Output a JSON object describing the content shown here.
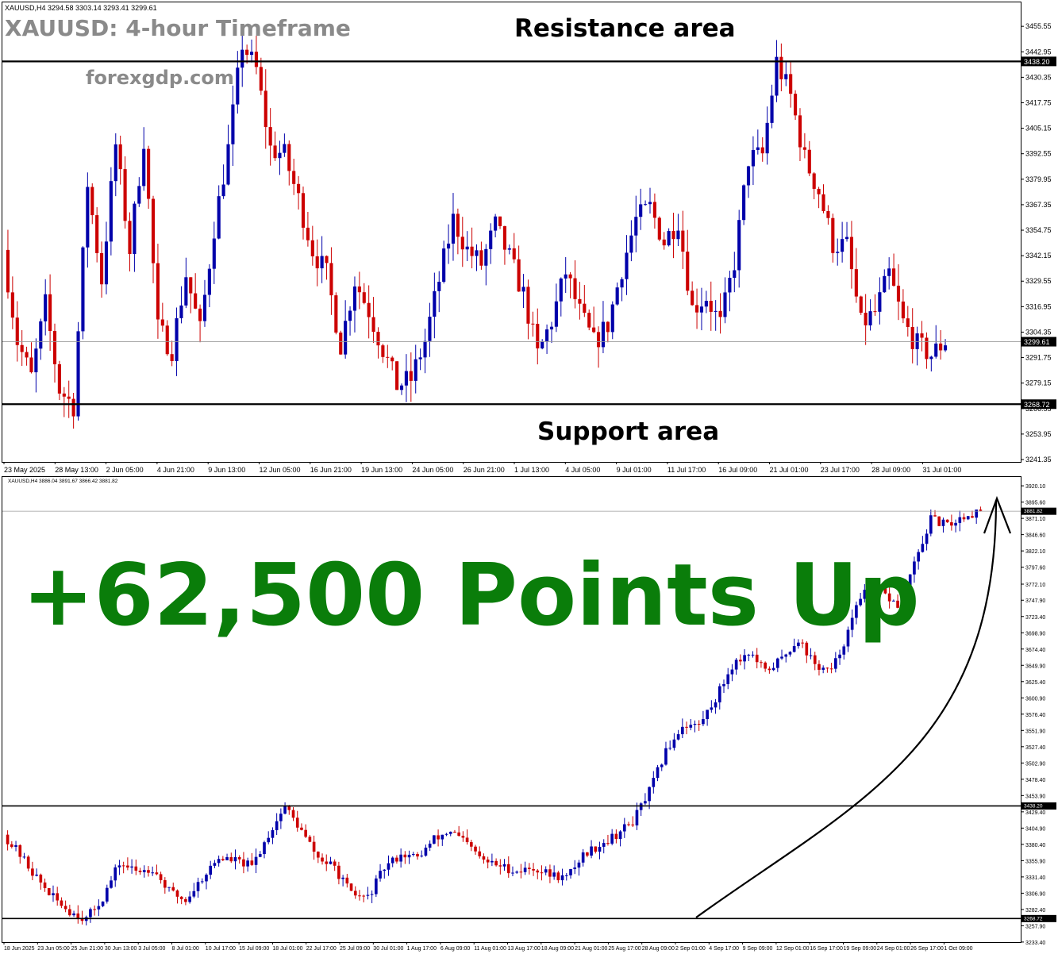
{
  "top_panel": {
    "header": "XAUUSD,H4  3294.58 3303.14 3293.41 3299.61",
    "title": "XAUUSD: 4-hour Timeframe",
    "brand": "forexgdp.com",
    "resistance_label": "Resistance area",
    "support_label": "Support area",
    "resistance_tag": "3438.20",
    "support_tag": "3268.72",
    "price_tag": "3299.61"
  },
  "bottom_panel": {
    "header": "XAUUSD,H4  3886.04 3891.67 3866.42 3881.82",
    "headline": "+62,500 Points Up",
    "resistance_tag": "3438.20",
    "support_tag": "3268.72",
    "price_tag": "3881.82"
  },
  "colors": {
    "bull": "#0000aa",
    "bear": "#cc0000",
    "headline": "#0a7d0a",
    "frame": "#000000"
  },
  "chart_data": [
    {
      "type": "candlestick",
      "title": "XAUUSD: 4-hour Timeframe",
      "ylim": [
        3241.35,
        3461.5
      ],
      "y_ticks": [
        "3455.55",
        "3442.95",
        "3430.35",
        "3417.75",
        "3405.15",
        "3392.55",
        "3379.95",
        "3367.35",
        "3354.75",
        "3342.15",
        "3329.55",
        "3316.95",
        "3304.35",
        "3291.75",
        "3279.15",
        "3266.55",
        "3253.95",
        "3241.35"
      ],
      "x_ticks": [
        "23 May 2025",
        "28 May 13:00",
        "2 Jun 05:00",
        "4 Jun 21:00",
        "9 Jun 13:00",
        "12 Jun 05:00",
        "16 Jun 21:00",
        "19 Jun 13:00",
        "24 Jun 05:00",
        "26 Jun 21:00",
        "1 Jul 13:00",
        "4 Jul 05:00",
        "9 Jul 01:00",
        "11 Jul 17:00",
        "16 Jul 09:00",
        "21 Jul 01:00",
        "23 Jul 17:00",
        "28 Jul 09:00",
        "31 Jul 01:00"
      ],
      "price_path": [
        3345,
        3300,
        3282,
        3318,
        3276,
        3268,
        3378,
        3330,
        3397,
        3345,
        3400,
        3306,
        3296,
        3333,
        3305,
        3356,
        3395,
        3447,
        3434,
        3395,
        3392,
        3370,
        3345,
        3333,
        3298,
        3330,
        3315,
        3296,
        3278,
        3281,
        3300,
        3330,
        3360,
        3345,
        3338,
        3357,
        3341,
        3323,
        3293,
        3310,
        3334,
        3314,
        3299,
        3308,
        3336,
        3360,
        3366,
        3349,
        3360,
        3316,
        3322,
        3308,
        3339,
        3390,
        3392,
        3438,
        3421,
        3390,
        3374,
        3348,
        3347,
        3308,
        3314,
        3333,
        3309,
        3298,
        3293,
        3300
      ],
      "horizontal_levels": [
        {
          "label": "Resistance area",
          "value": 3438.2
        },
        {
          "label": "Support area",
          "value": 3268.72
        }
      ],
      "last_price": 3299.61
    },
    {
      "type": "candlestick",
      "headline": "+62,500 Points Up",
      "ylim": [
        3233.3,
        3925.0
      ],
      "y_ticks": [
        "3920.10",
        "3895.60",
        "3871.10",
        "3846.60",
        "3822.10",
        "3797.60",
        "3772.10",
        "3747.90",
        "3723.40",
        "3698.90",
        "3674.40",
        "3649.90",
        "3625.40",
        "3600.90",
        "3576.40",
        "3551.90",
        "3527.40",
        "3502.90",
        "3478.40",
        "3453.90",
        "3429.40",
        "3404.90",
        "3380.40",
        "3355.90",
        "3331.40",
        "3306.90",
        "3282.40",
        "3257.90",
        "3233.40"
      ],
      "x_ticks": [
        "18 Jun 2025",
        "23 Jun 05:00",
        "25 Jun 21:00",
        "30 Jun 13:00",
        "3 Jul 05:00",
        "8 Jul 01:00",
        "10 Jul 17:00",
        "15 Jul 09:00",
        "18 Jul 01:00",
        "22 Jul 17:00",
        "25 Jul 09:00",
        "30 Jul 01:00",
        "1 Aug 17:00",
        "6 Aug 09:00",
        "11 Aug 01:00",
        "13 Aug 17:00",
        "18 Aug 09:00",
        "21 Aug 01:00",
        "25 Aug 17:00",
        "28 Aug 09:00",
        "2 Sep 01:00",
        "4 Sep 17:00",
        "9 Sep 09:00",
        "12 Sep 01:00",
        "16 Sep 17:00",
        "19 Sep 09:00",
        "24 Sep 01:00",
        "26 Sep 17:00",
        "1 Oct 09:00"
      ],
      "price_path": [
        3395,
        3365,
        3330,
        3300,
        3280,
        3268,
        3300,
        3352,
        3340,
        3345,
        3310,
        3296,
        3330,
        3360,
        3356,
        3347,
        3395,
        3438,
        3400,
        3360,
        3345,
        3305,
        3300,
        3345,
        3366,
        3360,
        3388,
        3401,
        3380,
        3355,
        3348,
        3340,
        3345,
        3335,
        3330,
        3365,
        3380,
        3395,
        3415,
        3460,
        3520,
        3560,
        3560,
        3600,
        3650,
        3670,
        3640,
        3660,
        3690,
        3650,
        3640,
        3700,
        3770,
        3760,
        3740,
        3800,
        3870,
        3860,
        3875,
        3882
      ],
      "horizontal_levels": [
        {
          "label": "3438.20",
          "value": 3438.2
        },
        {
          "label": "3268.72",
          "value": 3268.72
        }
      ],
      "last_price": 3881.82
    }
  ]
}
